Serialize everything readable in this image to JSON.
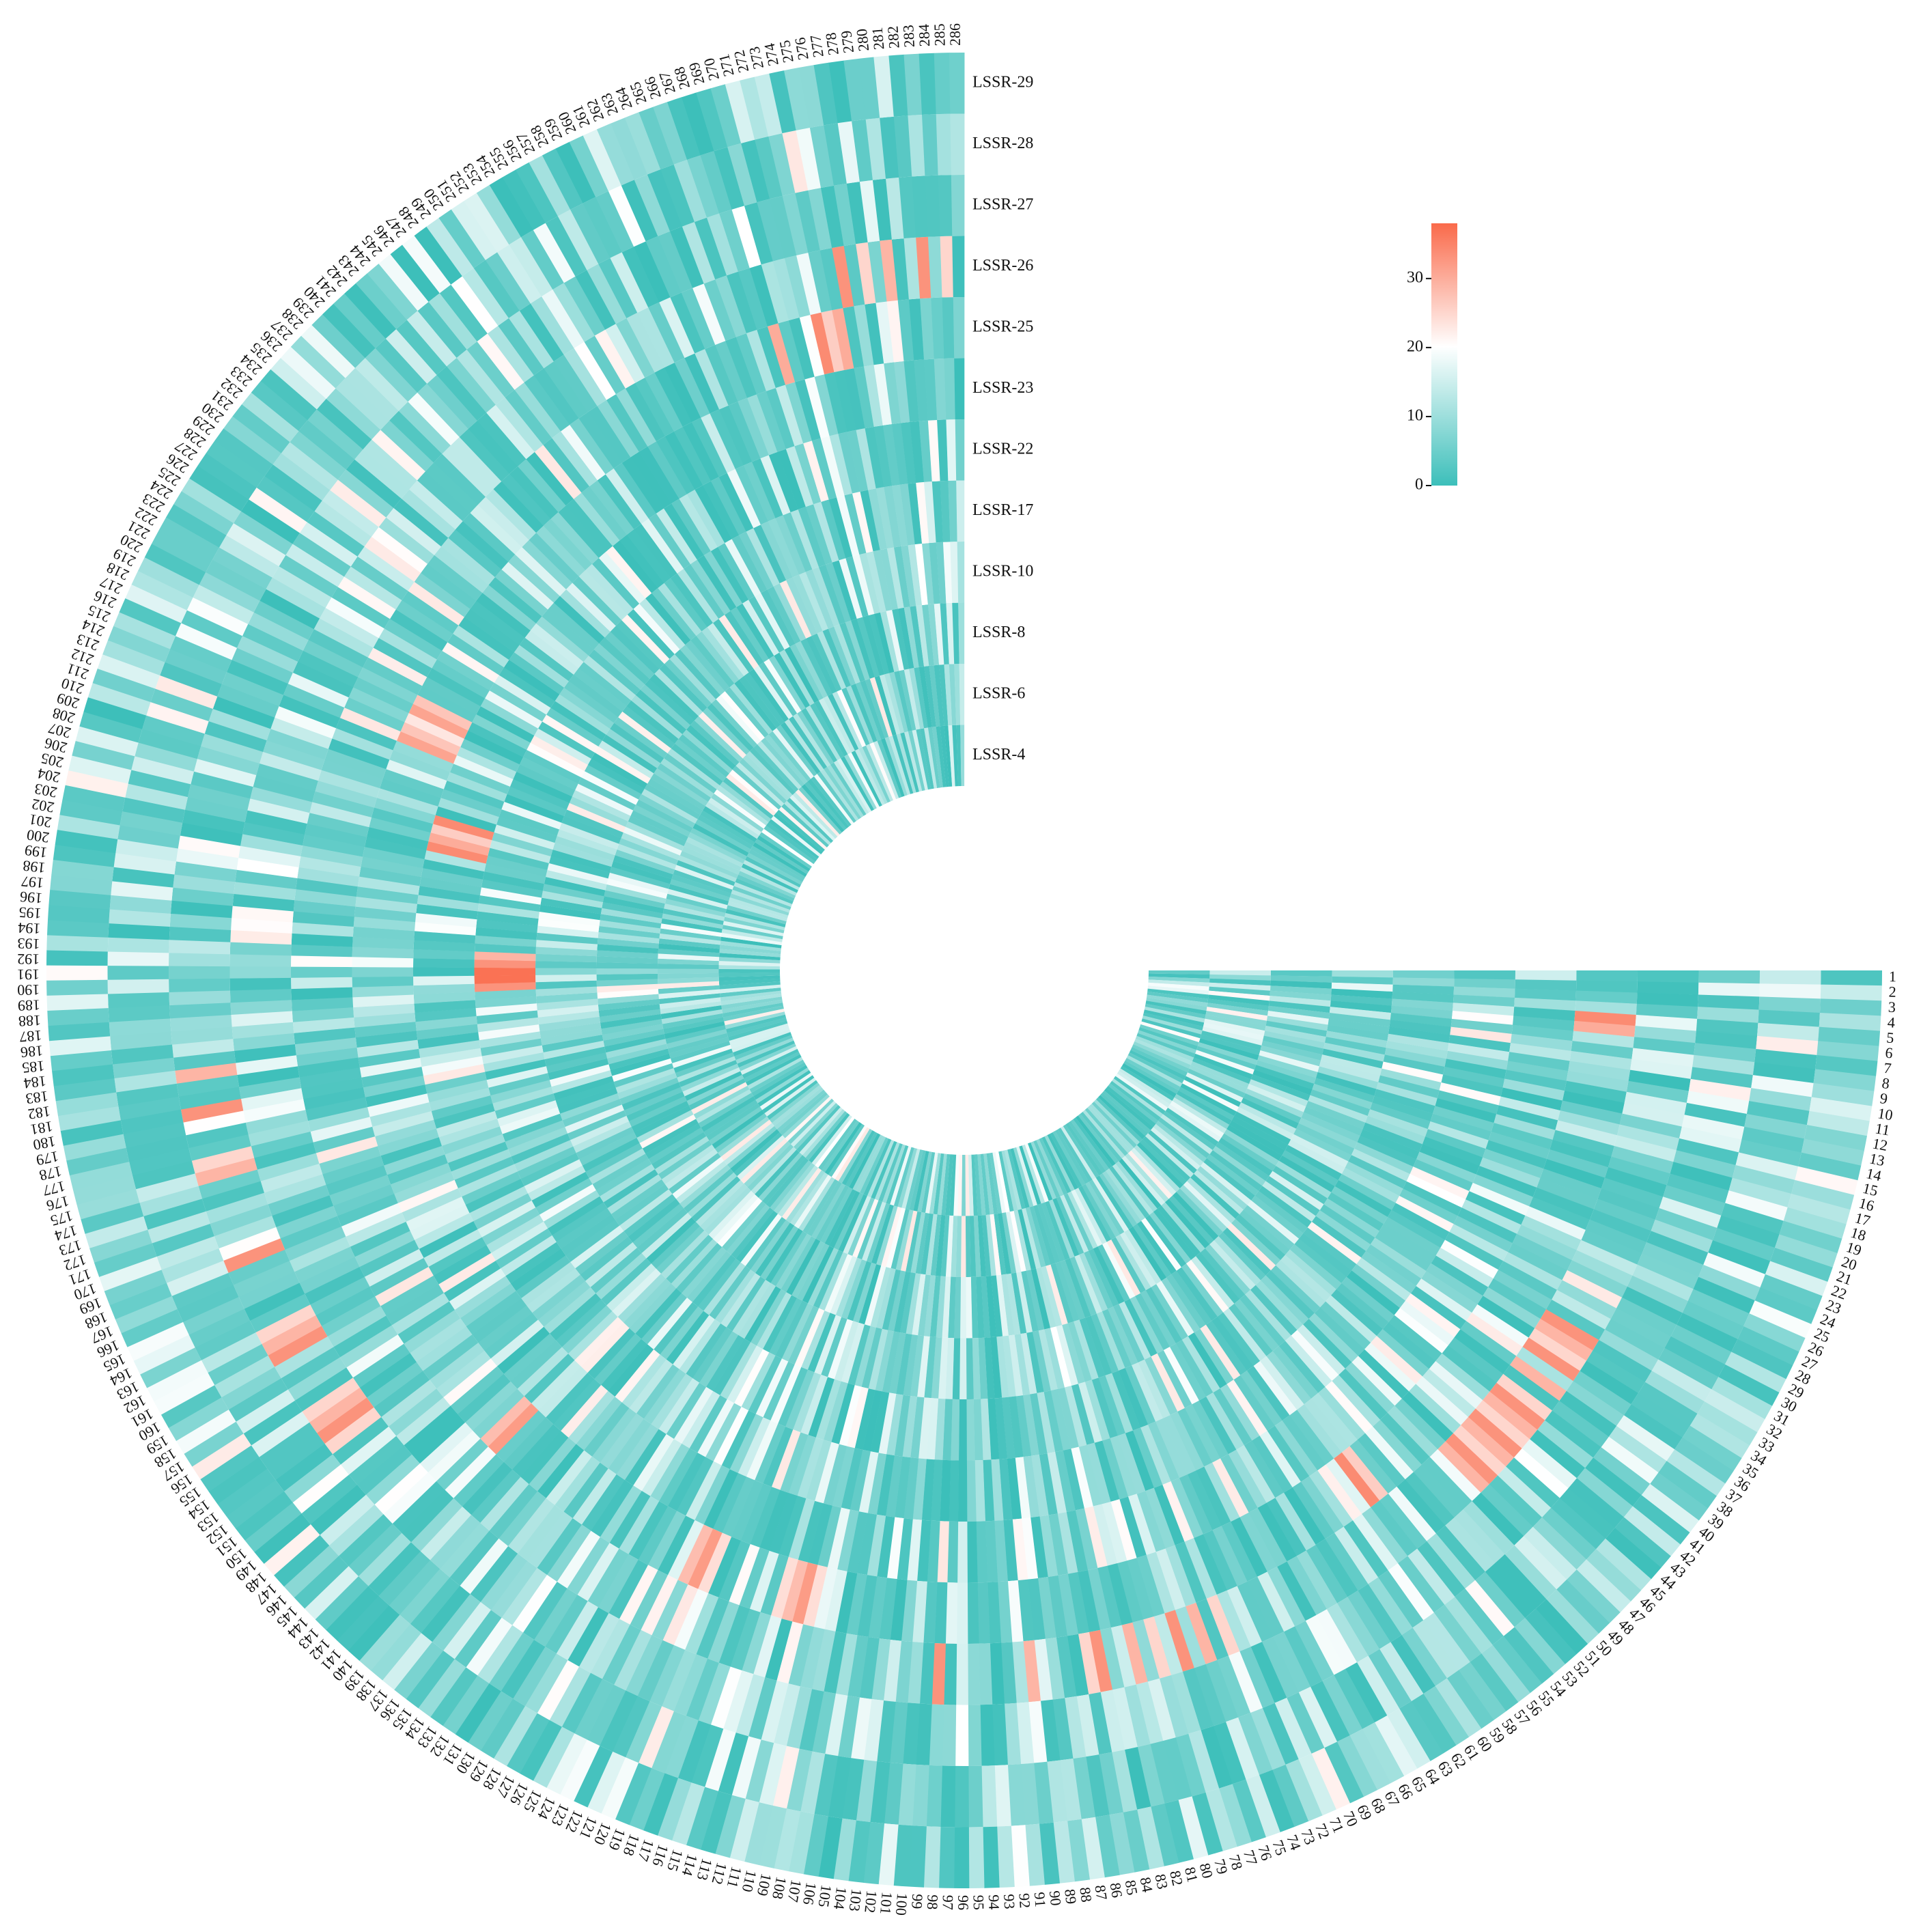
{
  "chart_data": {
    "type": "heatmap",
    "title": "",
    "layout": "circular",
    "sample_count": 286,
    "sample_labels_start": 1,
    "sample_labels_end": 286,
    "rings_inner_to_outer": [
      "LSSR-4",
      "LSSR-6",
      "LSSR-8",
      "LSSR-10",
      "LSSR-17",
      "LSSR-22",
      "LSSR-23",
      "LSSR-25",
      "LSSR-26",
      "LSSR-27",
      "LSSR-28",
      "LSSR-29"
    ],
    "value_range": [
      0,
      38
    ],
    "color_scale": {
      "low": "#3cbfba",
      "mid": "#ffffff",
      "high": "#fa6a4a",
      "mid_value": 20
    },
    "colorbar": {
      "ticks": [
        0,
        10,
        20,
        30
      ],
      "tick_labels": [
        "0",
        "10",
        "20",
        "30"
      ]
    },
    "legend_position": "top-right",
    "hot_spots": [
      {
        "ring": "LSSR-26",
        "samples": [
          33,
          34,
          35,
          36,
          38,
          40,
          41,
          42,
          43,
          44,
          45,
          46,
          47,
          48,
          85,
          84,
          81,
          79,
          77,
          75,
          73,
          98,
          90,
          285,
          283,
          280,
          278,
          276
        ],
        "value": 33
      },
      {
        "ring": "LSSR-25",
        "samples": [
          5,
          6,
          55,
          56,
          275,
          274,
          273,
          269
        ],
        "value": 34
      },
      {
        "ring": "LSSR-17",
        "samples": [
          191,
          192,
          193,
          190,
          189
        ],
        "value": 37
      },
      {
        "ring": "LSSR-22",
        "samples": [
          205,
          206,
          207,
          208
        ],
        "value": 34
      },
      {
        "ring": "LSSR-23",
        "samples": [
          215,
          216,
          217,
          218,
          219
        ],
        "value": 31
      },
      {
        "ring": "LSSR-27",
        "samples": [
          168,
          175,
          176,
          180,
          183,
          152,
          153,
          154,
          155,
          160,
          161,
          162
        ],
        "value": 33
      },
      {
        "ring": "LSSR-25",
        "samples": [
          143,
          144,
          120,
          121,
          122,
          110,
          111,
          112,
          113
        ],
        "value": 32
      }
    ]
  }
}
